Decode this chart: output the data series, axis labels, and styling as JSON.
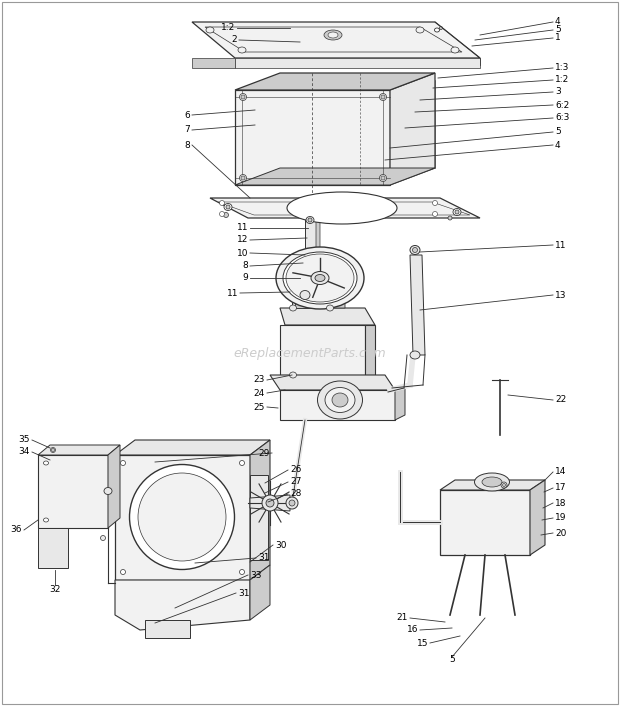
{
  "bg_color": "#ffffff",
  "line_color": "#333333",
  "gray_fill": "#e8e8e8",
  "gray_dark": "#cccccc",
  "gray_light": "#f2f2f2",
  "watermark": "eReplacementParts.com",
  "watermark_color": "#cccccc",
  "fig_width": 6.2,
  "fig_height": 7.06,
  "dpi": 100,
  "border_color": "#999999"
}
